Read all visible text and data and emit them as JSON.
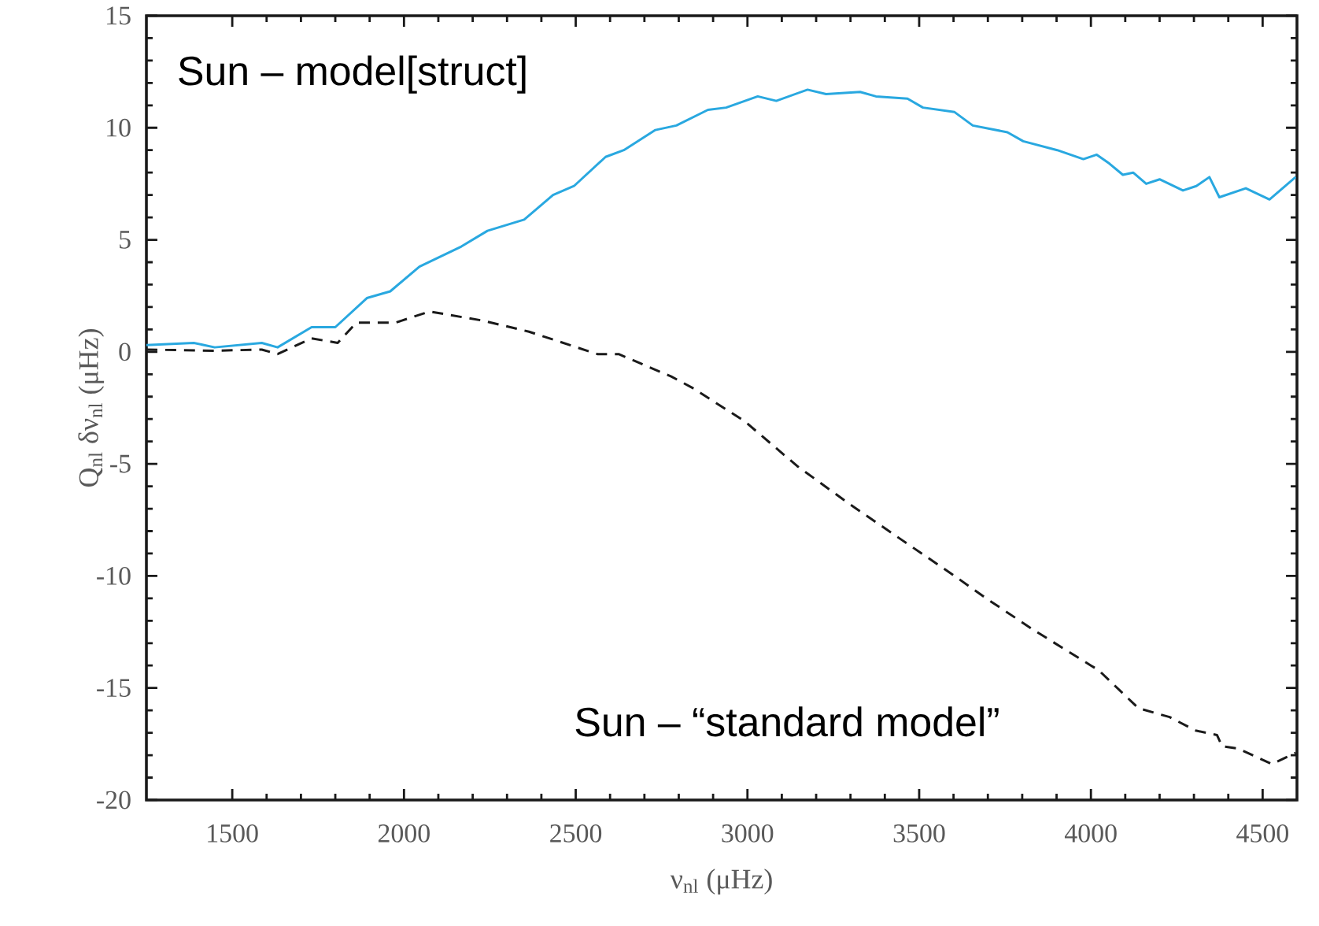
{
  "chart_data": {
    "type": "line",
    "xlabel": "ν$_{nl}$ (μHz)",
    "ylabel": "Q$_{nl}$  δν$_{nl}$ (μHz)",
    "xlim": [
      1250,
      4600
    ],
    "ylim": [
      -20,
      15
    ],
    "annotations": [
      "Sun – model[struct]",
      "Sun – “standard model”"
    ],
    "xticks": [
      1500,
      2000,
      2500,
      3000,
      3500,
      4000,
      4500
    ],
    "yticks": [
      -20,
      -15,
      -10,
      -5,
      0,
      5,
      10,
      15
    ],
    "series": [
      {
        "color": "#29a8e0",
        "line_style": "solid",
        "x": [
          1250,
          1388,
          1449,
          1586,
          1632,
          1731,
          1800,
          1892,
          1960,
          2045,
          2167,
          2243,
          2350,
          2434,
          2495,
          2587,
          2640,
          2732,
          2793,
          2885,
          2938,
          3030,
          3084,
          3175,
          3229,
          3328,
          3374,
          3466,
          3511,
          3603,
          3656,
          3757,
          3803,
          3902,
          3978,
          4017,
          4054,
          4093,
          4123,
          4161,
          4200,
          4268,
          4307,
          4345,
          4374,
          4451,
          4520,
          4596
        ],
        "values": [
          0.3,
          0.4,
          0.2,
          0.4,
          0.2,
          1.1,
          1.1,
          2.4,
          2.7,
          3.8,
          4.7,
          5.4,
          5.9,
          7.0,
          7.4,
          8.7,
          9.0,
          9.9,
          10.1,
          10.8,
          10.9,
          11.4,
          11.2,
          11.7,
          11.5,
          11.6,
          11.4,
          11.3,
          10.9,
          10.7,
          10.1,
          9.8,
          9.4,
          9.0,
          8.6,
          8.8,
          8.4,
          7.9,
          8.0,
          7.5,
          7.7,
          7.2,
          7.4,
          7.8,
          6.9,
          7.3,
          6.8,
          7.8
        ]
      },
      {
        "color": "#1a1a1a",
        "line_style": "dashed",
        "x": [
          1250,
          1449,
          1586,
          1632,
          1731,
          1807,
          1861,
          1975,
          2074,
          2227,
          2364,
          2563,
          2625,
          2778,
          2839,
          2992,
          3145,
          3298,
          3450,
          3603,
          3695,
          3832,
          4000,
          4022,
          4138,
          4229,
          4305,
          4367,
          4382,
          4428,
          4527,
          4596
        ],
        "values": [
          0.1,
          0.05,
          0.1,
          -0.1,
          0.6,
          0.4,
          1.3,
          1.3,
          1.8,
          1.4,
          0.9,
          -0.1,
          -0.1,
          -1.1,
          -1.6,
          -3.1,
          -5.1,
          -6.8,
          -8.4,
          -10.0,
          -11.0,
          -12.4,
          -14.0,
          -14.2,
          -15.9,
          -16.3,
          -16.9,
          -17.1,
          -17.6,
          -17.7,
          -18.4,
          -17.9
        ]
      }
    ]
  }
}
